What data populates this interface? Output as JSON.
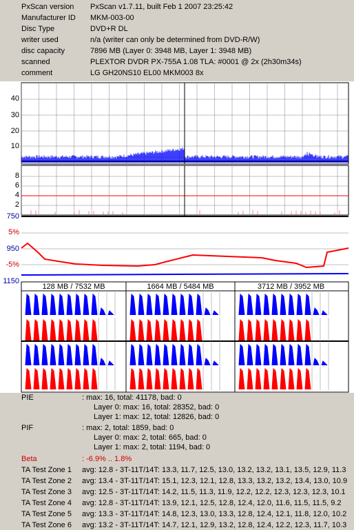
{
  "header": {
    "rows": [
      {
        "key": "PxScan version",
        "value": "PxScan v1.7.11, built Feb  1 2007 23:25:42"
      },
      {
        "key": "Manufacturer ID",
        "value": "MKM-003-00"
      },
      {
        "key": "Disc Type",
        "value": "DVD+R DL"
      },
      {
        "key": "writer used",
        "value": "n/a (writer can only be determined from DVD-R/W)"
      },
      {
        "key": "disc capacity",
        "value": "7896 MB (Layer 0: 3948 MB,  Layer 1: 3948 MB)"
      },
      {
        "key": "scanned",
        "value": "PLEXTOR DVDR  PX-755A 1.08 TLA: #0001 @ 2x (2h30m34s)"
      },
      {
        "key": "comment",
        "value": "LG GH20NS10 EL00 MKM003 8x"
      }
    ]
  },
  "colors": {
    "pie": "#0000ff",
    "pif": "#ff0000",
    "beta": "#ff0000",
    "jitter": "#0000ff",
    "panel_bg": "#d4d0c8"
  },
  "axes": {
    "pie_ticks": [
      "40",
      "30",
      "20",
      "10"
    ],
    "pif_ticks": [
      "8",
      "6",
      "4",
      "2"
    ],
    "jitter_ticks": [
      {
        "label": "750",
        "color": "#0000a0"
      },
      {
        "label": "5%",
        "color": "#d00000"
      },
      {
        "label": "950",
        "color": "#0000a0"
      },
      {
        "label": "-5%",
        "color": "#d00000"
      },
      {
        "label": "1150",
        "color": "#0000a0"
      }
    ]
  },
  "hist_titles": [
    "128 MB / 7532 MB",
    "1664 MB / 5484 MB",
    "3712 MB / 3952 MB"
  ],
  "summary": {
    "pie_label": "PIE",
    "pie_total": ": max: 16, total: 41178, bad: 0",
    "pie_l0": "Layer 0: max: 16, total: 28352, bad: 0",
    "pie_l1": "Layer 1: max: 12, total: 12826, bad: 0",
    "pif_label": "PIF",
    "pif_total": ": max: 2, total: 1859, bad: 0",
    "pif_l0": "Layer 0: max: 2, total: 665, bad: 0",
    "pif_l1": "Layer 1: max: 2, total: 1194, bad: 0",
    "beta_label": "Beta",
    "beta_value": ": -6.9% .. 1.8%"
  },
  "test_zones": [
    {
      "name": "TA Test Zone 1",
      "value": "avg: 12.8 - 3T-11T/14T: 13.3, 11.7, 12.5, 13.0, 13.2, 13.2, 13.1, 13.5, 12.9, 11.3"
    },
    {
      "name": "TA Test Zone 2",
      "value": "avg: 13.4 - 3T-11T/14T: 15.1, 12.3, 12.1, 12.8, 13.3, 13.2, 13.2, 13.4, 13.0, 10.9"
    },
    {
      "name": "TA Test Zone 3",
      "value": "avg: 12.5 - 3T-11T/14T: 14.2, 11.5, 11.3, 11.9, 12.2, 12.2, 12.3, 12.3, 12.3, 10.1"
    },
    {
      "name": "TA Test Zone 4",
      "value": "avg: 12.8 - 3T-11T/14T: 13.9, 12.1, 12.5, 12.8, 12.4, 12.0, 11.6, 11.5, 11.5, 9.2"
    },
    {
      "name": "TA Test Zone 5",
      "value": "avg: 13.3 - 3T-11T/14T: 14.8, 12.3, 13.0, 13.3, 12.8, 12.4, 12.1, 11.8, 12.0, 10.2"
    },
    {
      "name": "TA Test Zone 6",
      "value": "avg: 13.2 - 3T-11T/14T: 14.7, 12.1, 12.9, 13.2, 12.8, 12.4, 12.2, 12.3, 11.7, 10.3"
    }
  ]
}
